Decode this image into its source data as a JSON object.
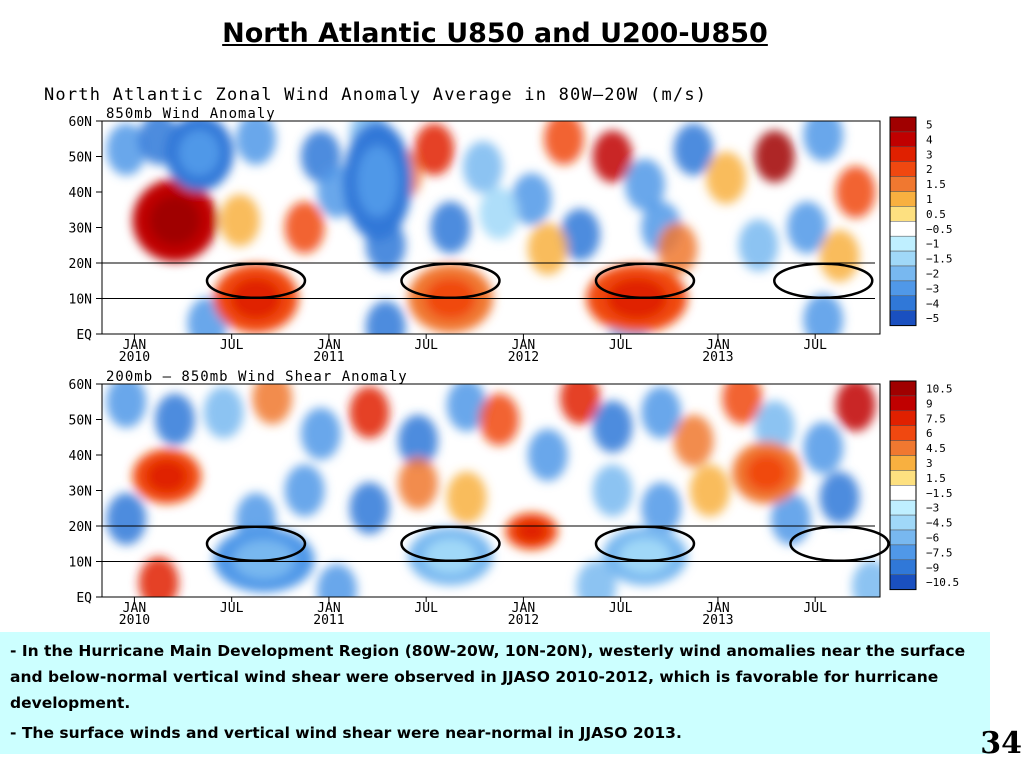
{
  "slide": {
    "title": "North Atlantic U850 and U200-U850",
    "page_number": "34"
  },
  "figure_title": "North Atlantic Zonal Wind Anomaly Average in 80W—20W (m/s)",
  "caption": {
    "bullet": "-",
    "points": [
      "In the Hurricane Main Development Region (80W-20W, 10N-20N), westerly wind anomalies near the surface and below-normal vertical wind shear were observed in JJASO 2010-2012, which is favorable for hurricane development.",
      "The surface winds and vertical wind shear were near-normal in JJASO 2013."
    ]
  },
  "chart_data": [
    {
      "type": "heatmap",
      "title": "850mb Wind Anomaly",
      "x_ticks": [
        {
          "month": "JAN",
          "year": "2010"
        },
        {
          "month": "JUL",
          "year": ""
        },
        {
          "month": "JAN",
          "year": "2011"
        },
        {
          "month": "JUL",
          "year": ""
        },
        {
          "month": "JAN",
          "year": "2012"
        },
        {
          "month": "JUL",
          "year": ""
        },
        {
          "month": "JAN",
          "year": "2013"
        },
        {
          "month": "JUL",
          "year": ""
        }
      ],
      "x_range": [
        "2009-11",
        "2013-10"
      ],
      "y_ticks": [
        "60N",
        "50N",
        "40N",
        "30N",
        "20N",
        "10N",
        "EQ"
      ],
      "y_range": [
        0,
        60
      ],
      "reference_lines_lat": [
        10,
        20
      ],
      "highlight_ellipses": [
        {
          "center": "2010-08",
          "lat": 15
        },
        {
          "center": "2011-08",
          "lat": 15
        },
        {
          "center": "2012-08",
          "lat": 15
        },
        {
          "center": "2013-07",
          "lat": 15
        }
      ],
      "colorbar": {
        "labels": [
          "5",
          "4",
          "3",
          "2",
          "1.5",
          "1",
          "0.5",
          "−0.5",
          "−1",
          "−1.5",
          "−2",
          "−3",
          "−4",
          "−5"
        ],
        "colors": [
          "#a00000",
          "#c00000",
          "#e02000",
          "#f04810",
          "#f07830",
          "#f8b040",
          "#fde080",
          "#ffffff",
          "#bfefff",
          "#a0d8f8",
          "#78b8f0",
          "#5098e8",
          "#3078d8",
          "#1a50c0"
        ]
      },
      "features": [
        {
          "lon_avg": "westerly",
          "value": 5,
          "period": "2010-01 to 2010-05",
          "lat": [
            22,
            42
          ]
        },
        {
          "lon_avg": "westerly",
          "value": 3,
          "period": "2010-06 to 2010-10",
          "lat": [
            2,
            18
          ]
        },
        {
          "lon_avg": "westerly",
          "value": 2,
          "period": "2011-06 to 2011-10",
          "lat": [
            2,
            18
          ]
        },
        {
          "lon_avg": "westerly",
          "value": 3,
          "period": "2012-05 to 2012-10",
          "lat": [
            2,
            18
          ]
        },
        {
          "lon_avg": "easterly",
          "value": -3,
          "period": "2010-03 to 2010-06",
          "lat": [
            42,
            60
          ]
        },
        {
          "lon_avg": "easterly",
          "value": -3,
          "period": "2011-02 to 2011-05",
          "lat": [
            28,
            58
          ]
        }
      ]
    },
    {
      "type": "heatmap",
      "title": "200mb — 850mb Wind Shear Anomaly",
      "x_ticks": [
        {
          "month": "JAN",
          "year": "2010"
        },
        {
          "month": "JUL",
          "year": ""
        },
        {
          "month": "JAN",
          "year": "2011"
        },
        {
          "month": "JUL",
          "year": ""
        },
        {
          "month": "JAN",
          "year": "2012"
        },
        {
          "month": "JUL",
          "year": ""
        },
        {
          "month": "JAN",
          "year": "2013"
        },
        {
          "month": "JUL",
          "year": ""
        }
      ],
      "x_range": [
        "2009-11",
        "2013-10"
      ],
      "y_ticks": [
        "60N",
        "50N",
        "40N",
        "30N",
        "20N",
        "10N",
        "EQ"
      ],
      "y_range": [
        0,
        60
      ],
      "reference_lines_lat": [
        10,
        20
      ],
      "highlight_ellipses": [
        {
          "center": "2010-08",
          "lat": 15
        },
        {
          "center": "2011-08",
          "lat": 15
        },
        {
          "center": "2012-08",
          "lat": 15
        },
        {
          "center": "2013-08",
          "lat": 15
        }
      ],
      "colorbar": {
        "labels": [
          "10.5",
          "9",
          "7.5",
          "6",
          "4.5",
          "3",
          "1.5",
          "−1.5",
          "−3",
          "−4.5",
          "−6",
          "−7.5",
          "−9",
          "−10.5"
        ],
        "colors": [
          "#a00000",
          "#c00000",
          "#e02000",
          "#f04810",
          "#f07830",
          "#f8b040",
          "#fde080",
          "#ffffff",
          "#bfefff",
          "#a0d8f8",
          "#78b8f0",
          "#5098e8",
          "#3078d8",
          "#1a50c0"
        ]
      },
      "features": [
        {
          "value": 7.5,
          "period": "2010-01 to 2010-04",
          "lat": [
            28,
            40
          ]
        },
        {
          "value": -6,
          "period": "2010-06 to 2010-11",
          "lat": [
            3,
            18
          ]
        },
        {
          "value": -4.5,
          "period": "2011-06 to 2011-10",
          "lat": [
            5,
            18
          ]
        },
        {
          "value": 7.5,
          "period": "2011-12 to 2012-02",
          "lat": [
            15,
            22
          ]
        },
        {
          "value": -4.5,
          "period": "2012-06 to 2012-10",
          "lat": [
            5,
            18
          ]
        },
        {
          "value": 6,
          "period": "2013-02 to 2013-05",
          "lat": [
            28,
            42
          ]
        }
      ]
    }
  ]
}
